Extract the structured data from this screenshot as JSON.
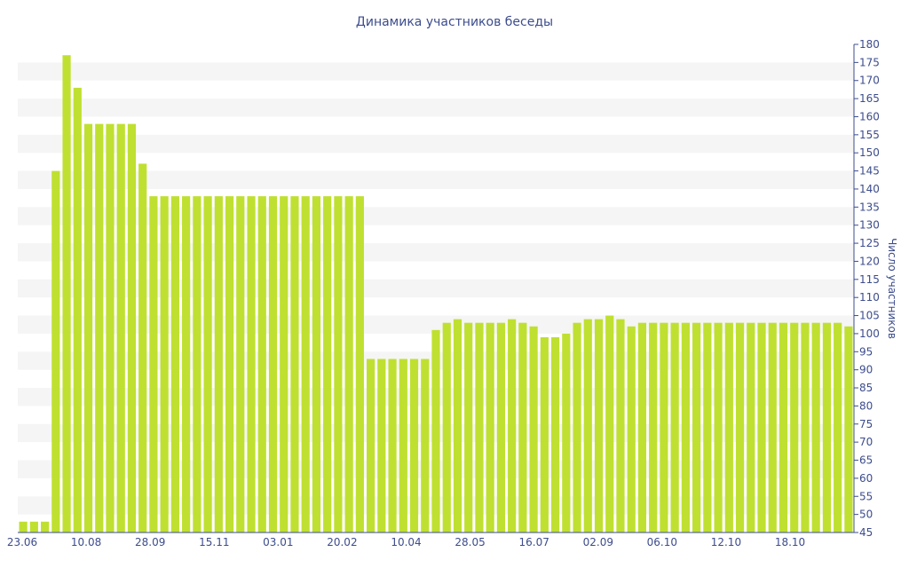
{
  "chart_data": {
    "type": "bar",
    "title": "Динамика участников беседы",
    "xlabel": "",
    "ylabel": "Число участников",
    "ylim": [
      45,
      180
    ],
    "y_step": 5,
    "y_axis_side": "right",
    "grid": "alternating horizontal bands",
    "x_tick_labels": [
      "23.06",
      "10.08",
      "28.09",
      "15.11",
      "03.01",
      "20.02",
      "10.04",
      "28.05",
      "16.07",
      "02.09",
      "06.10",
      "12.10",
      "18.10"
    ],
    "values": [
      48,
      48,
      48,
      145,
      177,
      168,
      158,
      158,
      158,
      158,
      158,
      147,
      138,
      138,
      138,
      138,
      138,
      138,
      138,
      138,
      138,
      138,
      138,
      138,
      138,
      138,
      138,
      138,
      138,
      138,
      138,
      138,
      93,
      93,
      93,
      93,
      93,
      93,
      101,
      103,
      104,
      103,
      103,
      103,
      103,
      104,
      103,
      102,
      99,
      99,
      100,
      103,
      104,
      104,
      105,
      104,
      102,
      103,
      103,
      103,
      103,
      103,
      103,
      103,
      103,
      103,
      103,
      103,
      103,
      103,
      103,
      103,
      103,
      103,
      103,
      103,
      102
    ],
    "bar_color": "#bfe030"
  }
}
